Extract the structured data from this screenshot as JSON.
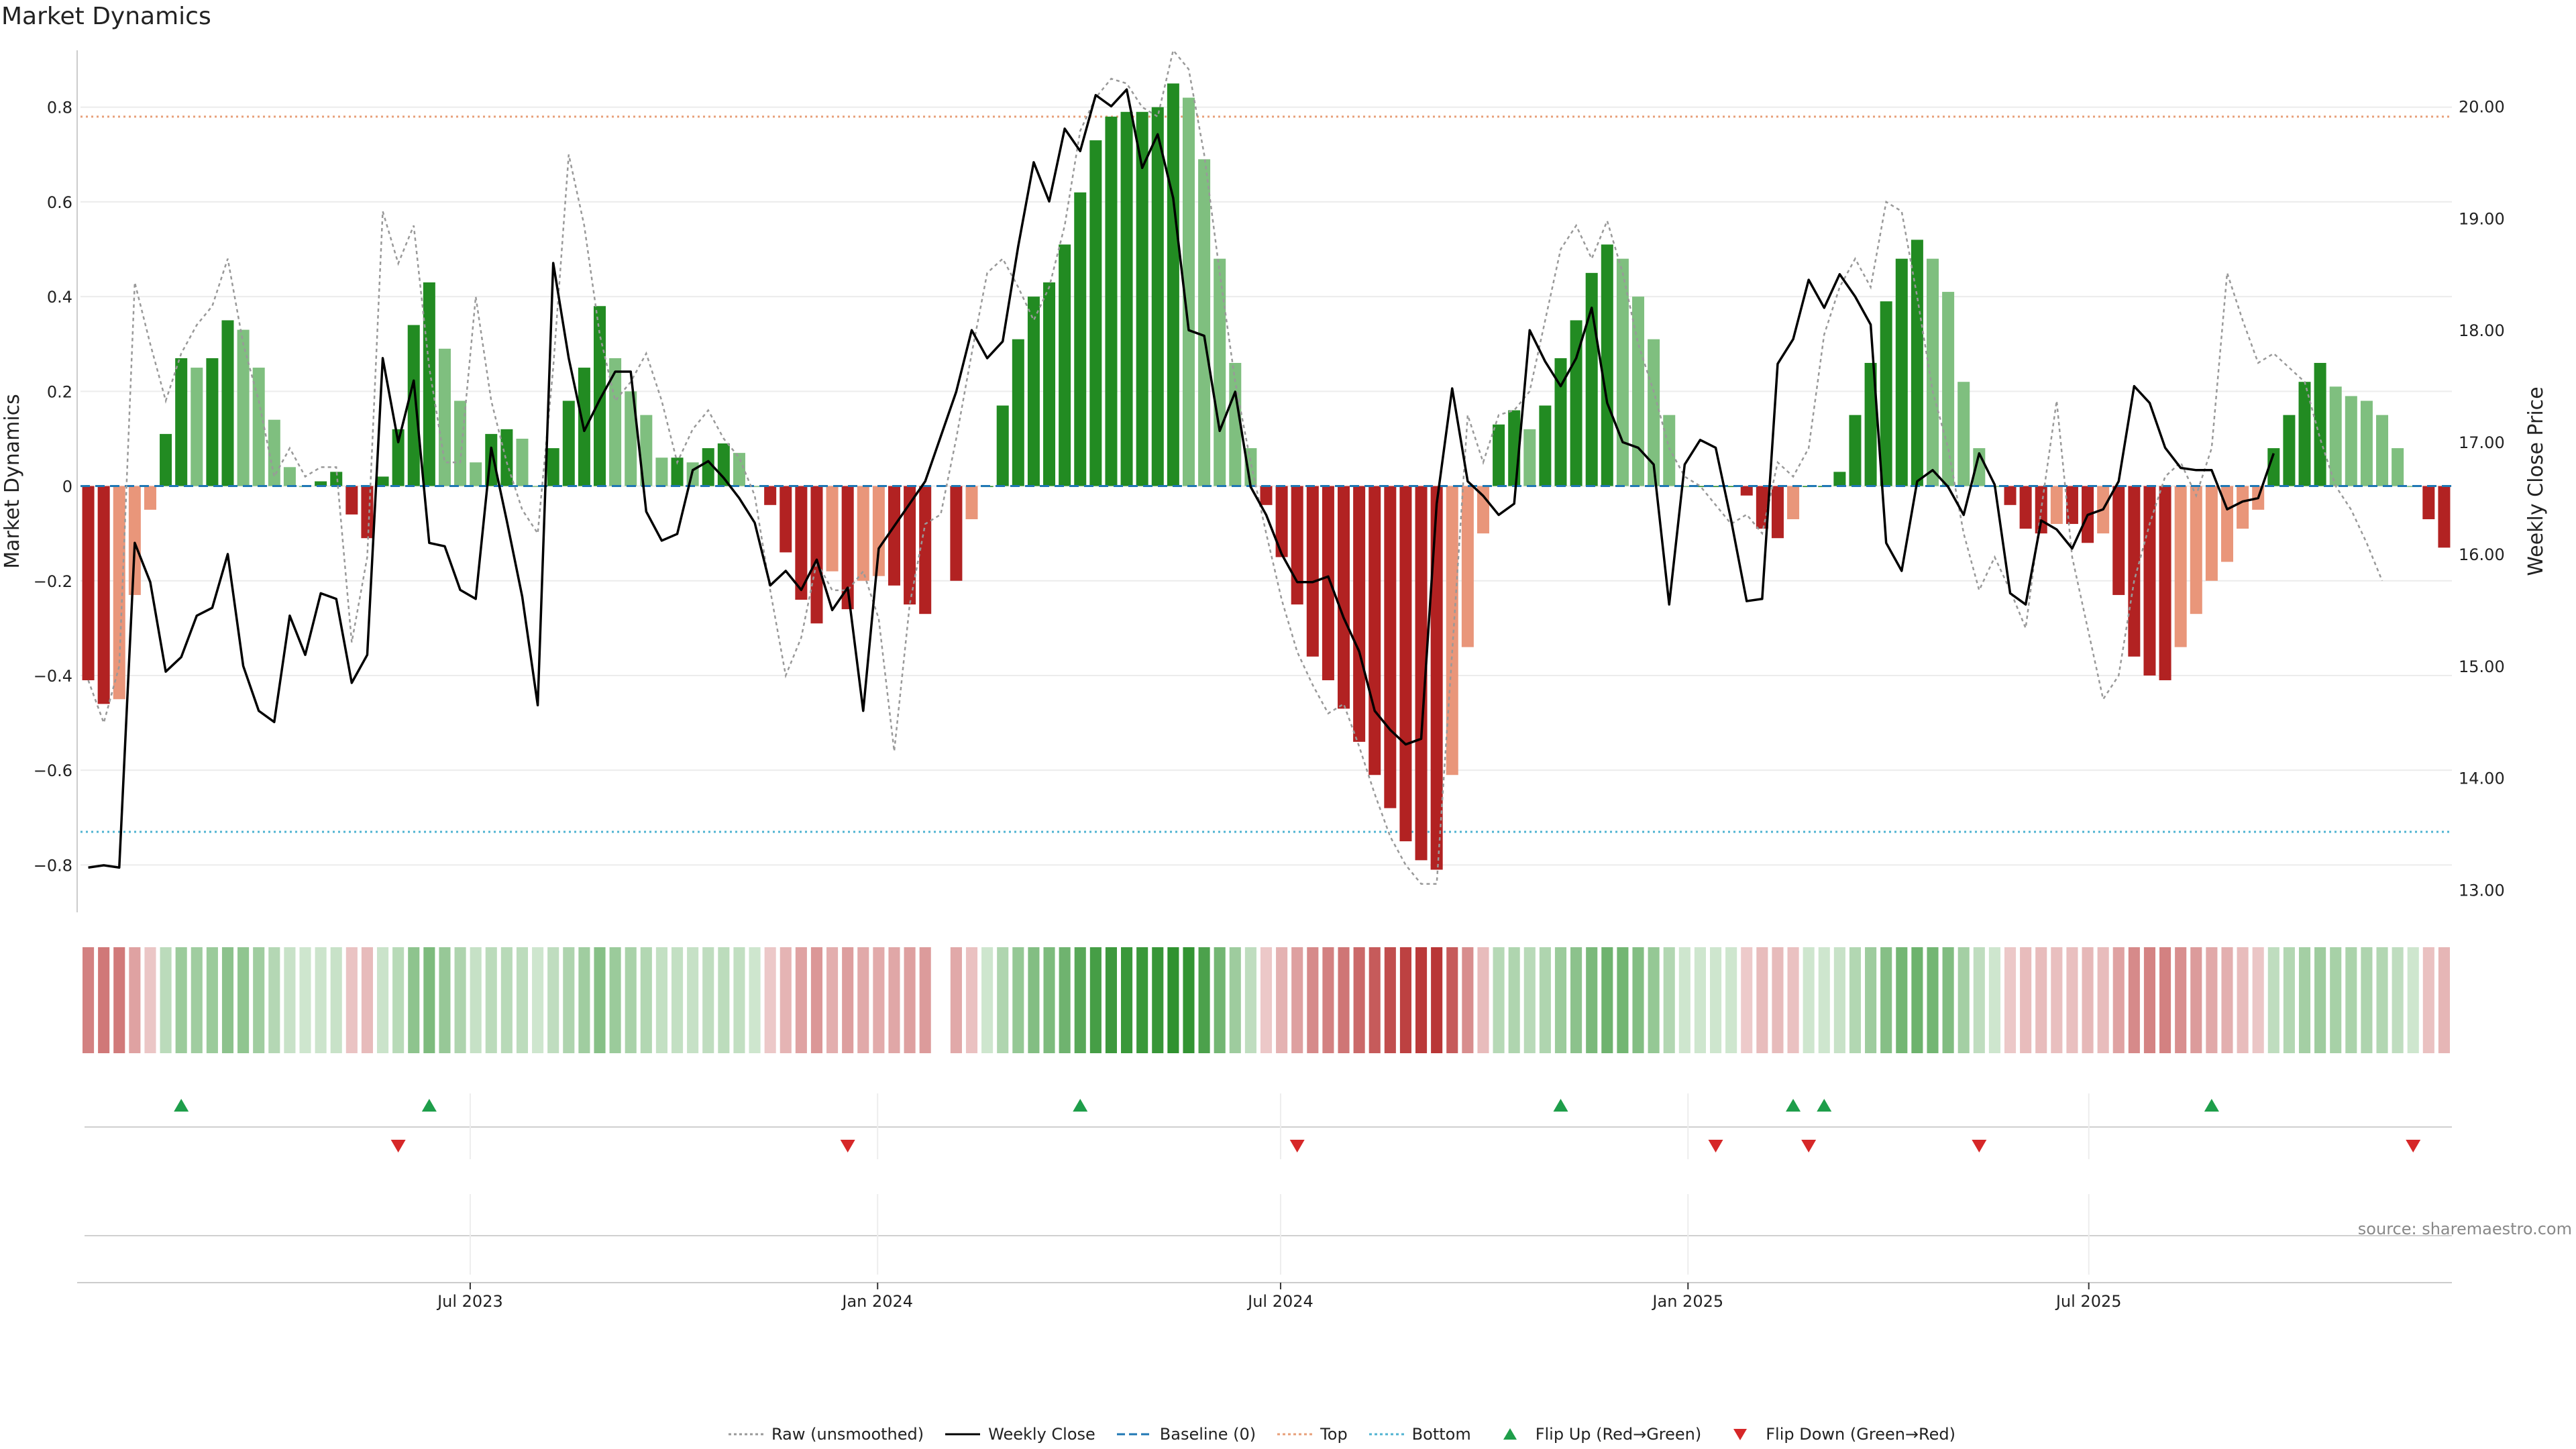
{
  "title": "Market Dynamics",
  "source_note": "source: sharemaestro.com",
  "legend": [
    {
      "label": "Raw (unsmoothed)",
      "style": "dotted",
      "color": "#999999",
      "icon": "dotted-line-icon"
    },
    {
      "label": "Weekly Close",
      "style": "solid",
      "color": "#000000",
      "icon": "solid-line-icon"
    },
    {
      "label": "Baseline (0)",
      "style": "dashed",
      "color": "#1f77b4",
      "icon": "dashed-line-icon"
    },
    {
      "label": "Top",
      "style": "dotted",
      "color": "#e8a07a",
      "icon": "dotted-line-icon"
    },
    {
      "label": "Bottom",
      "style": "dotted",
      "color": "#4fb3d1",
      "icon": "dotted-line-icon"
    },
    {
      "label": "Flip Up (Red→Green)",
      "style": "triangle-up",
      "color": "#1e9e4a",
      "icon": "triangle-up-icon"
    },
    {
      "label": "Flip Down (Green→Red)",
      "style": "triangle-down",
      "color": "#d62728",
      "icon": "triangle-down-icon"
    }
  ],
  "colors": {
    "bull_strong": "#228b22",
    "bull_weak": "#7fbf7f",
    "bear_strong": "#b22222",
    "bear_weak": "#e9967a",
    "raw_line": "#999999",
    "close_line": "#000000",
    "baseline": "#1f77b4",
    "top_line": "#e8a07a",
    "bottom_line": "#4fb3d1",
    "flip_up": "#1e9e4a",
    "flip_down": "#d62728"
  },
  "chart_data": {
    "type": "bar",
    "start_date": "2023-01-06",
    "frequency": "weekly",
    "left_axis": {
      "label": "Market Dynamics",
      "range": [
        -0.9,
        0.92
      ],
      "ticks": [
        -0.8,
        -0.6,
        -0.4,
        -0.2,
        0,
        0.2,
        0.4,
        0.6,
        0.8
      ],
      "tick_labels": [
        "−0.8",
        "−0.6",
        "−0.4",
        "−0.2",
        "0",
        "0.2",
        "0.4",
        "0.6",
        "0.8"
      ]
    },
    "right_axis": {
      "label": "Weekly Close Price",
      "range": [
        12.8,
        20.5
      ],
      "ticks": [
        13,
        14,
        15,
        16,
        17,
        18,
        19,
        20
      ],
      "tick_labels": [
        "13.00",
        "14.00",
        "15.00",
        "16.00",
        "17.00",
        "18.00",
        "19.00",
        "20.00"
      ]
    },
    "x_ticks": [
      {
        "date": "2023-07-01",
        "label": "Jul 2023"
      },
      {
        "date": "2024-01-01",
        "label": "Jan 2024"
      },
      {
        "date": "2024-07-01",
        "label": "Jul 2024"
      },
      {
        "date": "2025-01-01",
        "label": "Jan 2025"
      },
      {
        "date": "2025-07-01",
        "label": "Jul 2025"
      }
    ],
    "top_level": 0.78,
    "bottom_level": -0.73,
    "baseline": 0,
    "series": [
      {
        "name": "Market Dynamics",
        "kind": "bar",
        "values": [
          -0.41,
          -0.46,
          -0.45,
          -0.23,
          -0.05,
          0.11,
          0.27,
          0.25,
          0.27,
          0.35,
          0.33,
          0.25,
          0.14,
          0.04,
          0,
          0.01,
          0.03,
          -0.06,
          -0.11,
          0.02,
          0.12,
          0.34,
          0.43,
          0.29,
          0.18,
          0.05,
          0.11,
          0.12,
          0.1,
          0,
          0.08,
          0.18,
          0.25,
          0.38,
          0.27,
          0.2,
          0.15,
          0.06,
          0.06,
          0.05,
          0.08,
          0.09,
          0.07,
          0,
          -0.04,
          -0.14,
          -0.24,
          -0.29,
          -0.18,
          -0.26,
          -0.2,
          -0.19,
          -0.21,
          -0.25,
          -0.27,
          null,
          -0.2,
          -0.07,
          0,
          0.17,
          0.31,
          0.4,
          0.43,
          0.51,
          0.62,
          0.73,
          0.78,
          0.79,
          0.79,
          0.8,
          0.85,
          0.82,
          0.69,
          0.48,
          0.26,
          0.08,
          -0.04,
          -0.15,
          -0.25,
          -0.36,
          -0.41,
          -0.47,
          -0.54,
          -0.61,
          -0.68,
          -0.75,
          -0.79,
          -0.81,
          -0.61,
          -0.34,
          -0.1,
          0.13,
          0.16,
          0.12,
          0.17,
          0.27,
          0.35,
          0.45,
          0.51,
          0.48,
          0.4,
          0.31,
          0.15,
          0,
          0,
          0,
          0,
          -0.02,
          -0.09,
          -0.11,
          -0.07,
          0,
          0,
          0.03,
          0.15,
          0.26,
          0.39,
          0.48,
          0.52,
          0.48,
          0.41,
          0.22,
          0.08,
          0,
          -0.04,
          -0.09,
          -0.1,
          -0.08,
          -0.08,
          -0.12,
          -0.1,
          -0.23,
          -0.36,
          -0.4,
          -0.41,
          -0.34,
          -0.27,
          -0.2,
          -0.16,
          -0.09,
          -0.05,
          0.08,
          0.15,
          0.22,
          0.26,
          0.21,
          0.19,
          0.18,
          0.15,
          0.08,
          0,
          -0.07,
          -0.13
        ]
      },
      {
        "name": "Raw (unsmoothed)",
        "kind": "line",
        "values": [
          -0.41,
          -0.5,
          -0.38,
          0.43,
          0.3,
          0.18,
          0.28,
          0.34,
          0.38,
          0.48,
          0.3,
          0.18,
          0.02,
          0.08,
          0.02,
          0.04,
          0.04,
          -0.33,
          -0.15,
          0.58,
          0.47,
          0.55,
          0.25,
          0.05,
          0.05,
          0.4,
          0.18,
          0.05,
          -0.05,
          -0.1,
          0.25,
          0.7,
          0.55,
          0.32,
          0.18,
          0.22,
          0.28,
          0.18,
          0.05,
          0.12,
          0.16,
          0.1,
          0.06,
          -0.02,
          -0.22,
          -0.4,
          -0.32,
          -0.16,
          -0.22,
          -0.22,
          -0.18,
          -0.28,
          -0.56,
          -0.25,
          -0.08,
          -0.06,
          0.1,
          0.28,
          0.45,
          0.48,
          0.42,
          0.35,
          0.42,
          0.55,
          0.75,
          0.82,
          0.86,
          0.85,
          0.8,
          0.78,
          0.92,
          0.88,
          0.7,
          0.45,
          0.22,
          0.05,
          -0.1,
          -0.24,
          -0.35,
          -0.42,
          -0.48,
          -0.46,
          -0.55,
          -0.65,
          -0.74,
          -0.8,
          -0.84,
          -0.84,
          -0.35,
          0.15,
          0.05,
          0.15,
          0.16,
          0.2,
          0.35,
          0.5,
          0.55,
          0.48,
          0.56,
          0.45,
          0.3,
          0.2,
          0.08,
          0.02,
          0,
          -0.04,
          -0.08,
          -0.06,
          -0.1,
          0.05,
          0.02,
          0.08,
          0.32,
          0.42,
          0.48,
          0.42,
          0.6,
          0.58,
          0.4,
          0.2,
          0.08,
          -0.1,
          -0.22,
          -0.15,
          -0.22,
          -0.3,
          -0.05,
          0.18,
          -0.15,
          -0.3,
          -0.45,
          -0.4,
          -0.2,
          -0.08,
          0.02,
          0.05,
          -0.02,
          0.08,
          0.45,
          0.35,
          0.26,
          0.28,
          0.25,
          0.22,
          0.1,
          0,
          -0.05,
          -0.12,
          -0.2
        ]
      },
      {
        "name": "Weekly Close",
        "kind": "line",
        "axis": "right",
        "values": [
          13.2,
          13.22,
          13.2,
          16.1,
          15.75,
          14.95,
          15.08,
          15.45,
          15.52,
          16.0,
          15.0,
          14.6,
          14.5,
          15.45,
          15.1,
          15.65,
          15.6,
          14.85,
          15.1,
          17.75,
          17.0,
          17.55,
          16.1,
          16.07,
          15.68,
          15.6,
          16.95,
          16.3,
          15.62,
          14.65,
          18.6,
          17.75,
          17.1,
          17.38,
          17.63,
          17.63,
          16.38,
          16.12,
          16.18,
          16.75,
          16.83,
          16.68,
          16.5,
          16.28,
          15.72,
          15.85,
          15.68,
          15.95,
          15.5,
          15.7,
          14.6,
          16.05,
          16.25,
          16.45,
          16.65,
          17.05,
          17.45,
          18.0,
          17.75,
          17.9,
          18.75,
          19.5,
          19.15,
          19.8,
          19.6,
          20.1,
          20.0,
          20.15,
          19.45,
          19.75,
          19.18,
          18.0,
          17.95,
          17.1,
          17.45,
          16.6,
          16.35,
          16.0,
          15.75,
          15.75,
          15.8,
          15.43,
          15.13,
          14.6,
          14.43,
          14.3,
          14.35,
          16.45,
          17.48,
          16.65,
          16.52,
          16.35,
          16.45,
          18.0,
          17.72,
          17.5,
          17.75,
          18.2,
          17.35,
          17.0,
          16.95,
          16.8,
          15.55,
          16.8,
          17.02,
          16.95,
          16.3,
          15.58,
          15.6,
          17.7,
          17.92,
          18.45,
          18.2,
          18.5,
          18.3,
          18.05,
          16.1,
          15.85,
          16.65,
          16.75,
          16.6,
          16.35,
          16.9,
          16.62,
          15.65,
          15.55,
          16.3,
          16.22,
          16.05,
          16.35,
          16.4,
          16.65,
          17.5,
          17.35,
          16.95,
          16.77,
          16.75,
          16.75,
          16.4,
          16.47,
          16.5,
          16.9
        ]
      },
      {
        "name": "Flip Up (Red→Green)",
        "kind": "marker",
        "dates": [
          "2023-02-17",
          "2023-06-09",
          "2024-03-29",
          "2024-11-01",
          "2025-02-14",
          "2025-02-28",
          "2025-08-22"
        ]
      },
      {
        "name": "Flip Down (Green→Red)",
        "kind": "marker",
        "dates": [
          "2023-05-26",
          "2023-12-15",
          "2024-07-05",
          "2025-01-10",
          "2025-02-21",
          "2025-05-09",
          "2025-11-21"
        ]
      }
    ],
    "strip": {
      "description": "colour-coded regime strip mirroring the bar values"
    },
    "grid": true
  }
}
